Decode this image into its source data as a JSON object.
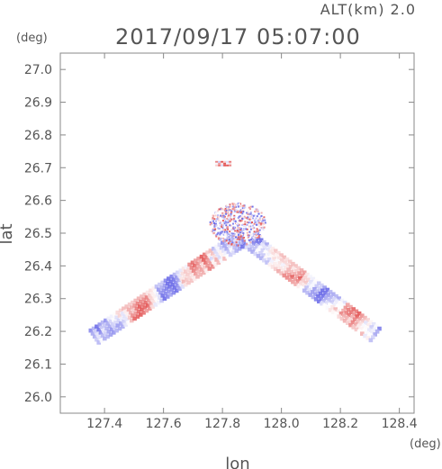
{
  "header": {
    "altitude_label": "ALT(km) 2.0",
    "timestamp": "2017/09/17 05:07:00",
    "y_unit": "(deg)",
    "x_unit": "(deg)"
  },
  "colors": {
    "axis": "#888888",
    "text": "#555555",
    "positive": "#e35a5a",
    "negative": "#6e6ee8",
    "neutral": "#ffffff"
  },
  "chart_data": {
    "type": "heatmap",
    "title": "2017/09/17 05:07:00",
    "subtitle": "ALT(km) 2.0",
    "xlabel": "lon",
    "ylabel": "lat",
    "xlim": [
      127.25,
      128.45
    ],
    "ylim": [
      25.95,
      27.05
    ],
    "x_ticks": [
      "127.4",
      "127.6",
      "127.8",
      "128.0",
      "128.2",
      "128.4"
    ],
    "y_ticks": [
      "26.0",
      "26.1",
      "26.2",
      "26.3",
      "26.4",
      "26.5",
      "26.6",
      "26.7",
      "26.8",
      "26.9",
      "27.0"
    ],
    "x_tick_values": [
      127.4,
      127.6,
      127.8,
      128.0,
      128.2,
      128.4
    ],
    "y_tick_values": [
      26.0,
      26.1,
      26.2,
      26.3,
      26.4,
      26.5,
      26.6,
      26.7,
      26.8,
      26.9,
      27.0
    ],
    "grid": false,
    "colormap": "red-white-blue diverging (unlabeled)",
    "swaths": [
      {
        "name": "",
        "start": [
          127.36,
          26.19
        ],
        "end": [
          127.86,
          26.49
        ],
        "width_deg": 0.045
      },
      {
        "name": "",
        "start": [
          127.89,
          26.48
        ],
        "end": [
          128.32,
          26.19
        ],
        "width_deg": 0.045
      }
    ],
    "central_cluster": {
      "center": [
        127.85,
        26.53
      ],
      "radius_deg": 0.09
    },
    "isolated_patch": {
      "center": [
        127.8,
        26.715
      ],
      "size_deg": 0.02
    }
  }
}
